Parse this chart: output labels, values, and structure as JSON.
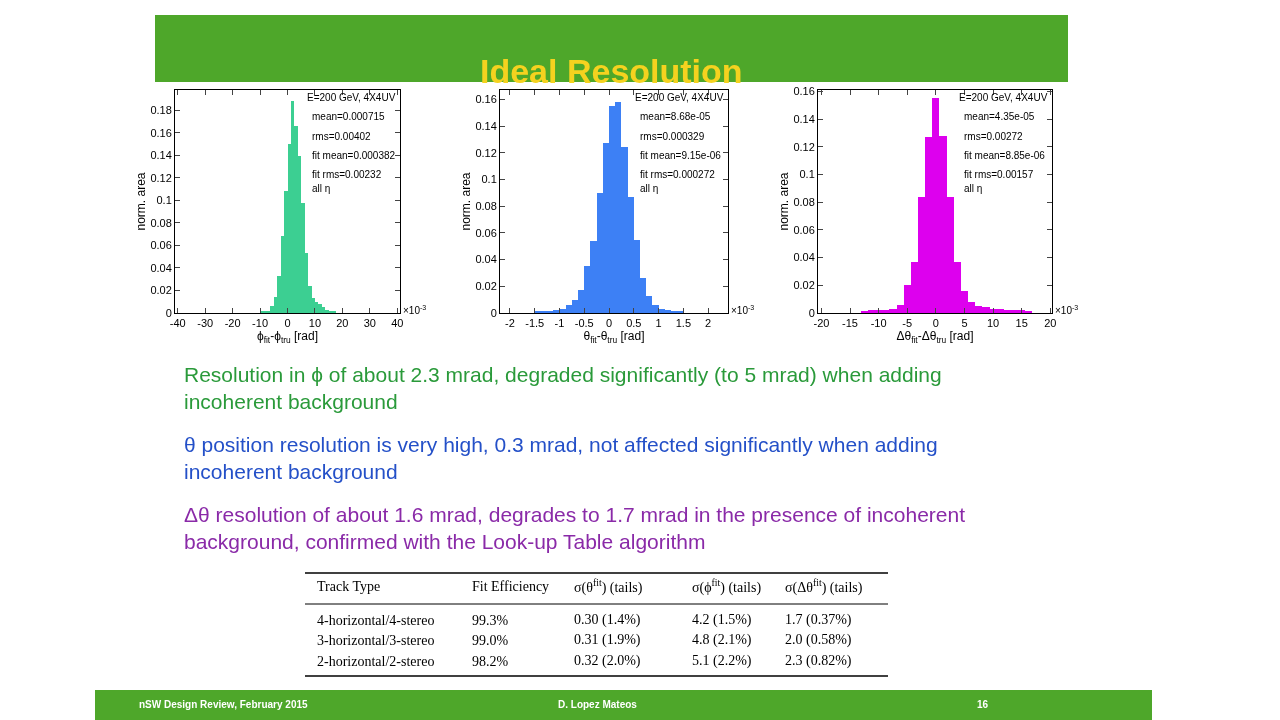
{
  "chart_data": [
    {
      "type": "histogram",
      "xlabel": "ϕ$_{fit}$-ϕ$_{tru}$ [rad]",
      "ylabel": "norm. area",
      "color": "#3ccf92",
      "bins": [
        -10,
        -8.75,
        -7.5,
        -6.25,
        -5,
        -3.75,
        -2.5,
        -1.25,
        0,
        1.25,
        2.5,
        3.75,
        5,
        6.25,
        7.5,
        8.75,
        10,
        11.25,
        12.5,
        13.75,
        15,
        16.25,
        17.5
      ],
      "values": [
        0.001,
        0.001,
        0.002,
        0.006,
        0.014,
        0.033,
        0.068,
        0.108,
        0.15,
        0.188,
        0.166,
        0.139,
        0.098,
        0.053,
        0.024,
        0.013,
        0.01,
        0.008,
        0.005,
        0.003,
        0.002,
        0.001
      ],
      "xlim": [
        -41,
        41
      ],
      "ylim": [
        0,
        0.198
      ],
      "xticks": [
        -40,
        -30,
        -20,
        -10,
        0,
        10,
        20,
        30,
        40
      ],
      "yticks": [
        0,
        0.02,
        0.04,
        0.06,
        0.08,
        0.1,
        0.12,
        0.14,
        0.16,
        0.18
      ],
      "annotations": [
        "E=200 GeV, 4X4UV",
        "mean=0.000715",
        "rms=0.00402",
        "fit mean=0.000382",
        "fit rms=0.00232",
        "all η",
        "×10$^{-3}$"
      ]
    },
    {
      "type": "histogram",
      "xlabel": "θ$_{fit}$-θ$_{tru}$ [rad]",
      "ylabel": "norm. area",
      "color": "#3d80f5",
      "bins": [
        -1.5,
        -1.375,
        -1.25,
        -1.125,
        -1,
        -0.875,
        -0.75,
        -0.625,
        -0.5,
        -0.375,
        -0.25,
        -0.125,
        0,
        0.125,
        0.25,
        0.375,
        0.5,
        0.625,
        0.75,
        0.875,
        1,
        1.125,
        1.25,
        1.375,
        1.5
      ],
      "values": [
        0.001,
        0.001,
        0.001,
        0.002,
        0.003,
        0.006,
        0.01,
        0.017,
        0.035,
        0.054,
        0.09,
        0.127,
        0.155,
        0.158,
        0.124,
        0.087,
        0.055,
        0.026,
        0.013,
        0.006,
        0.003,
        0.002,
        0.001,
        0.001
      ],
      "xlim": [
        -2.2,
        2.4
      ],
      "ylim": [
        0,
        0.167
      ],
      "xticks": [
        -2,
        -1.5,
        -1,
        -0.5,
        0,
        0.5,
        1,
        1.5,
        2
      ],
      "yticks": [
        0,
        0.02,
        0.04,
        0.06,
        0.08,
        0.1,
        0.12,
        0.14,
        0.16
      ],
      "annotations": [
        "E=200 GeV, 4X4UV",
        "mean=8.68e-05",
        "rms=0.000329",
        "fit mean=9.15e-06",
        "fit rms=0.000272",
        "all η",
        "×10$^{-3}$"
      ]
    },
    {
      "type": "histogram",
      "xlabel": "Δθ$_{fit}$-Δθ$_{tru}$ [rad]",
      "ylabel": "norm. area",
      "color": "#dd00ee",
      "bins": [
        -13.125,
        -11.875,
        -10.625,
        -9.375,
        -8.125,
        -6.875,
        -5.625,
        -4.375,
        -3.125,
        -1.875,
        -0.625,
        0.625,
        1.875,
        3.125,
        4.375,
        5.625,
        6.875,
        8.125,
        9.375,
        10.625,
        11.875,
        13.125,
        14.375,
        15.625,
        16.875
      ],
      "values": [
        0.001,
        0.002,
        0.002,
        0.002,
        0.003,
        0.006,
        0.02,
        0.037,
        0.084,
        0.127,
        0.155,
        0.128,
        0.084,
        0.037,
        0.016,
        0.008,
        0.005,
        0.004,
        0.003,
        0.003,
        0.002,
        0.002,
        0.002,
        0.001
      ],
      "xlim": [
        -20.6,
        20.3
      ],
      "ylim": [
        0,
        0.161
      ],
      "xticks": [
        -20,
        -15,
        -10,
        -5,
        0,
        5,
        10,
        15,
        20
      ],
      "yticks": [
        0,
        0.02,
        0.04,
        0.06,
        0.08,
        0.1,
        0.12,
        0.14,
        0.16
      ],
      "annotations": [
        "E=200 GeV, 4X4UV",
        "mean=4.35e-05",
        "rms=0.00272",
        "fit mean=8.85e-06",
        "fit rms=0.00157",
        "all η",
        "×10$^{-3}$"
      ]
    },
    {
      "type": "other",
      "title": "Ideal Resolution",
      "annotations": [
        "Resolution in ϕ of about 2.3 mrad, degraded significantly (to 5 mrad) when adding incoherent background",
        "θ position resolution is very high, 0.3 mrad, not affected significantly when adding incoherent background",
        "Δθ resolution of about 1.6 mrad, degrades to 1.7 mrad in the presence of incoherent background, confirmed with the Look-up Table algorithm",
        "Track Type",
        "Fit Efficiency",
        "σ(θ$^{fit}$) (tails)",
        "σ(ϕ$^{fit}$) (tails)",
        "σ(Δθ$^{fit}$) (tails)",
        "4-horizontal/4-stereo",
        "99.3%",
        "0.30 (1.4%)",
        "4.2 (1.5%)",
        "1.7 (0.37%)",
        "3-horizontal/3-stereo",
        "99.0%",
        "0.31 (1.9%)",
        "4.8 (2.1%)",
        "2.0 (0.58%)",
        "2-horizontal/2-stereo",
        "98.2%",
        "0.32 (2.0%)",
        "5.1 (2.2%)",
        "2.3 (0.82%)",
        "nSW Design Review, February 2015",
        "D. Lopez Mateos",
        "16"
      ]
    }
  ]
}
